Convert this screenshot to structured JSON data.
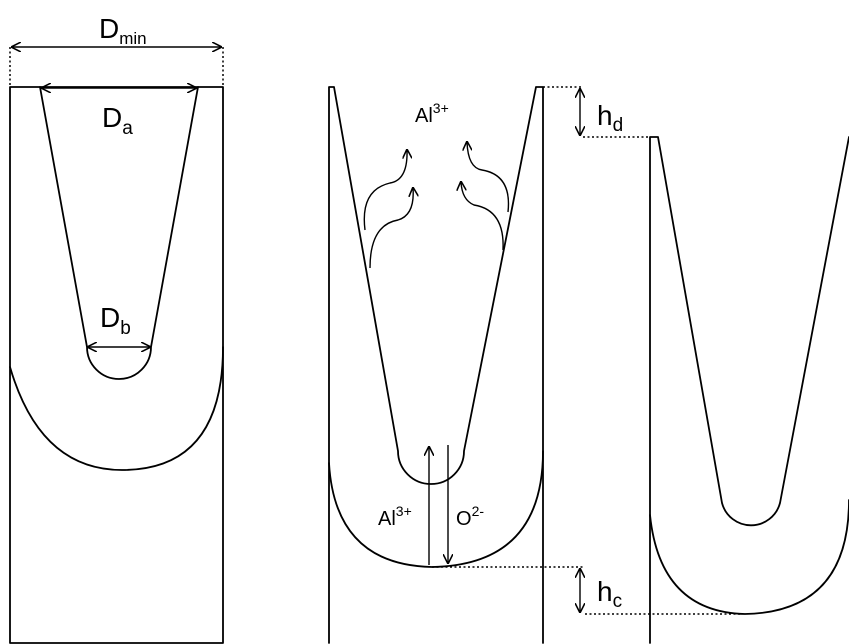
{
  "labels": {
    "d_min": {
      "main": "D",
      "sub": "min"
    },
    "d_a": {
      "main": "D",
      "sub": "a"
    },
    "d_b": {
      "main": "D",
      "sub": "b"
    },
    "h_d": {
      "main": "h",
      "sub": "d"
    },
    "h_c": {
      "main": "h",
      "sub": "c"
    },
    "al_top": {
      "main": "Al",
      "sup": "3+"
    },
    "al_bottom": {
      "main": "Al",
      "sup": "3+"
    },
    "o_bottom": {
      "main": "O",
      "sup": "2-"
    }
  }
}
